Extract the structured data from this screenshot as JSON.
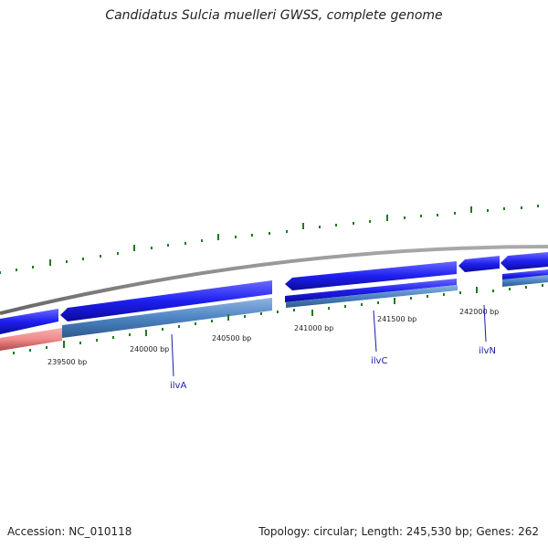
{
  "title": "Candidatus Sulcia muelleri GWSS, complete genome",
  "accession": "Accession: NC_010118",
  "summary": "Topology: circular; Length: 245,530 bp; Genes: 262",
  "position_labels": [
    "239500 bp",
    "240000 bp",
    "240500 bp",
    "241000 bp",
    "241500 bp",
    "242000 bp"
  ],
  "gene_labels": [
    "ilvA",
    "ilvC",
    "ilvN"
  ],
  "colors": {
    "backbone": "#888888",
    "forward_gene": "#1f1ff0",
    "reverse_gene": "#4d84c4",
    "rna_gene": "#f08a8a",
    "tick": "#1f7a1f",
    "label_line": "#1a1aa8"
  }
}
